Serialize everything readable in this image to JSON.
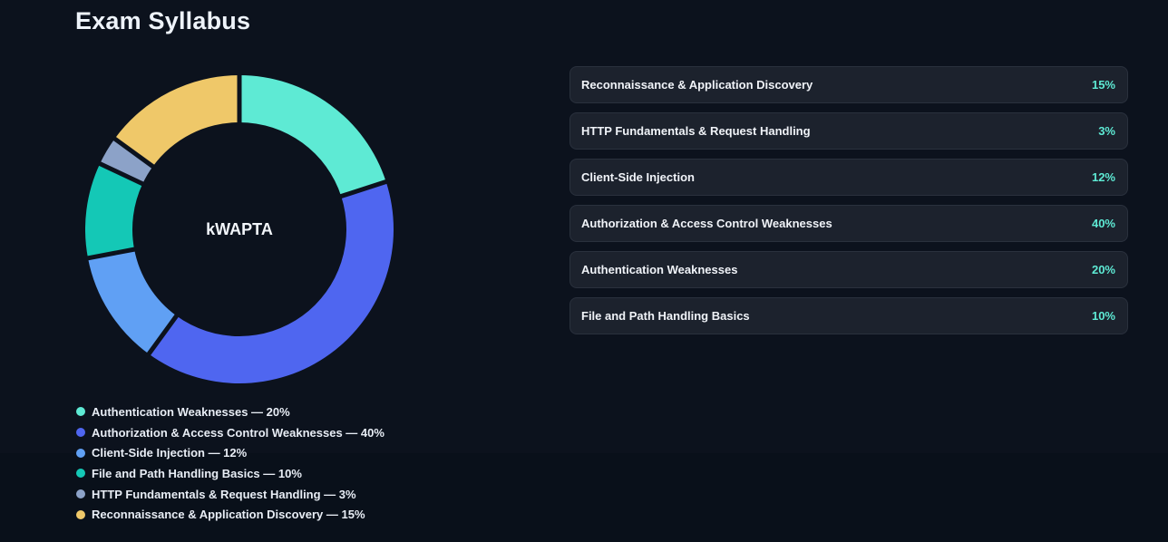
{
  "page": {
    "title": "Exam Syllabus"
  },
  "chart_data": {
    "type": "pie",
    "center_label": "kWAPTA",
    "slices": [
      {
        "label": "Authentication Weaknesses",
        "value": 20,
        "color": "#5eead4",
        "legend_text": "Authentication Weaknesses — 20%"
      },
      {
        "label": "Authorization & Access Control Weaknesses",
        "value": 40,
        "color": "#4f66f0",
        "legend_text": "Authorization & Access Control Weaknesses — 40%"
      },
      {
        "label": "Client-Side Injection",
        "value": 12,
        "color": "#60a0f4",
        "legend_text": "Client-Side Injection — 12%"
      },
      {
        "label": "File and Path Handling Basics",
        "value": 10,
        "color": "#14c8b6",
        "legend_text": "File and Path Handling Basics — 10%"
      },
      {
        "label": "HTTP Fundamentals & Request Handling",
        "value": 3,
        "color": "#8ca2c8",
        "legend_text": "HTTP Fundamentals & Request Handling — 3%"
      },
      {
        "label": "Reconnaissance & Application Discovery",
        "value": 15,
        "color": "#efc869",
        "legend_text": "Reconnaissance & Application Discovery — 15%"
      }
    ],
    "legend_position": "bottom-left"
  },
  "topics": [
    {
      "name": "Reconnaissance & Application Discovery",
      "percent": "15%"
    },
    {
      "name": "HTTP Fundamentals & Request Handling",
      "percent": "3%"
    },
    {
      "name": "Client-Side Injection",
      "percent": "12%"
    },
    {
      "name": "Authorization & Access Control Weaknesses",
      "percent": "40%"
    },
    {
      "name": "Authentication Weaknesses",
      "percent": "20%"
    },
    {
      "name": "File and Path Handling Basics",
      "percent": "10%"
    }
  ],
  "colors": {
    "background": "#0c121d",
    "card": "#1c222d",
    "accent": "#5eead4"
  }
}
